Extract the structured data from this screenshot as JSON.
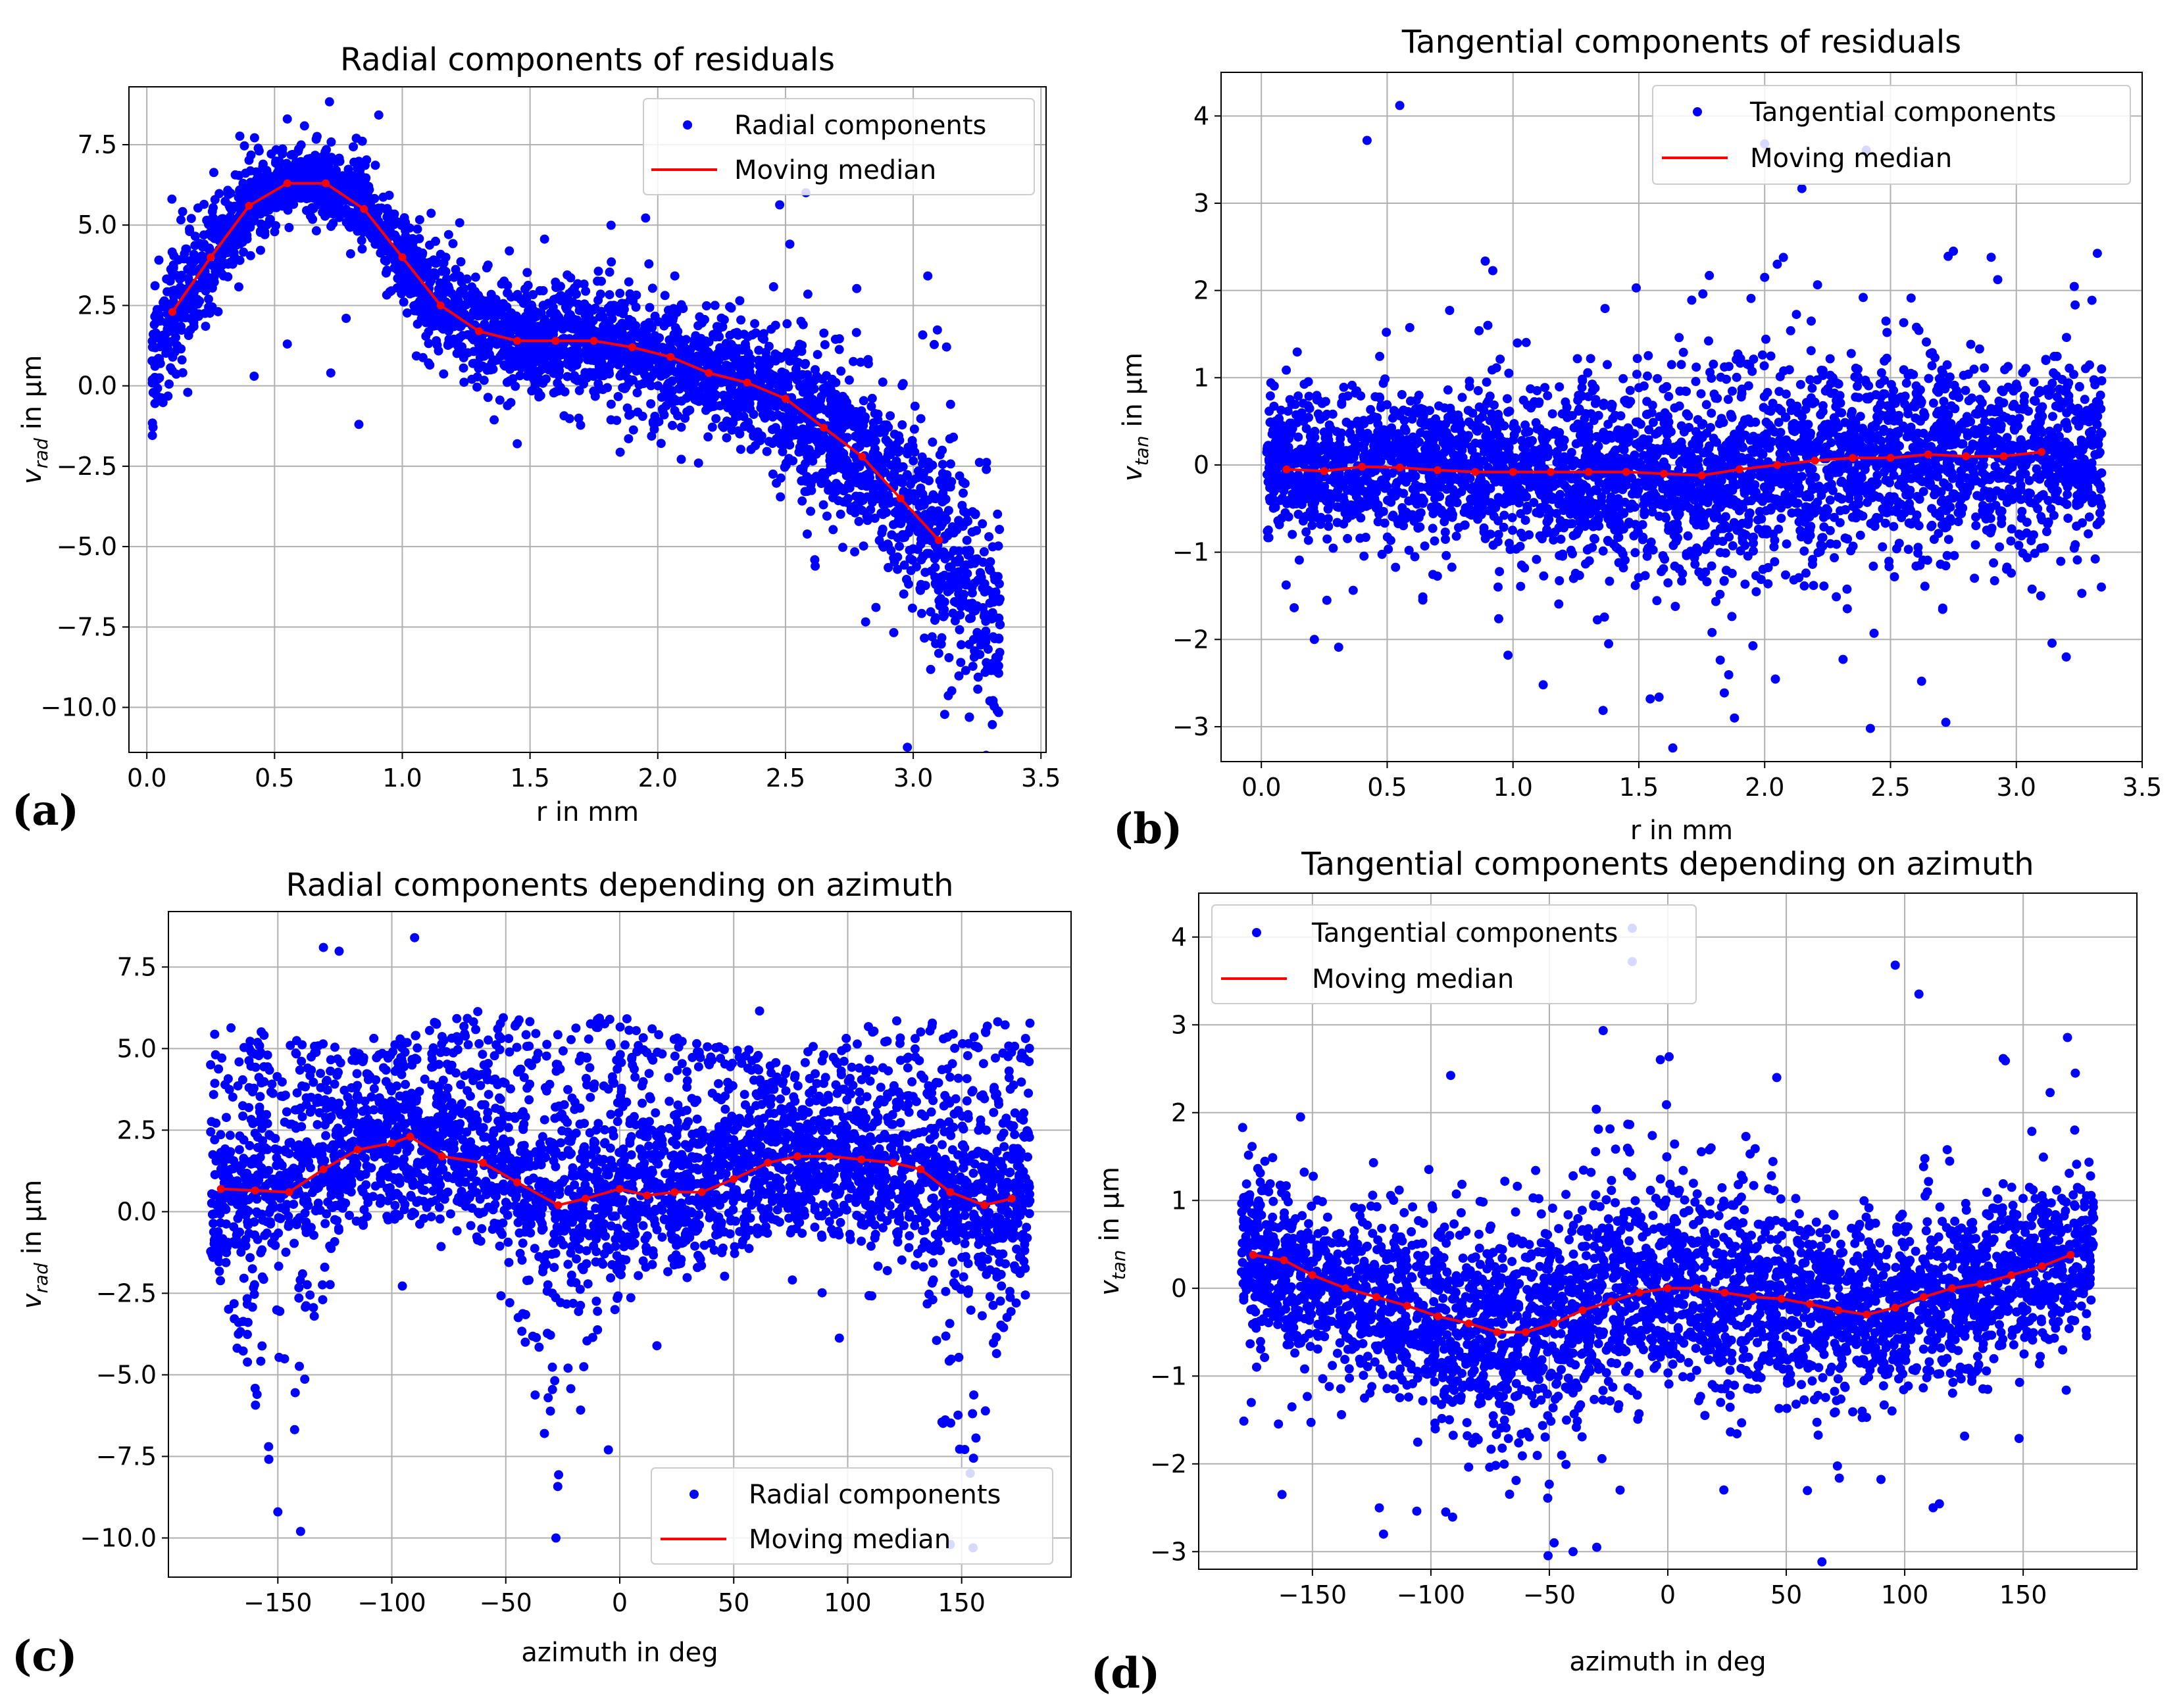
{
  "chart_data": [
    {
      "panel": "(a)",
      "type": "scatter",
      "title": "Radial components of residuals",
      "xlabel": "r in mm",
      "ylabel_main": "v",
      "ylabel_sub": "rad",
      "ylabel_rest": " in µm",
      "xlim": [
        -0.07,
        3.52
      ],
      "ylim": [
        -11.4,
        9.3
      ],
      "xticks": [
        0.0,
        0.5,
        1.0,
        1.5,
        2.0,
        2.5,
        3.0,
        3.5
      ],
      "xtick_labels": [
        "0.0",
        "0.5",
        "1.0",
        "1.5",
        "2.0",
        "2.5",
        "3.0",
        "3.5"
      ],
      "yticks": [
        -10.0,
        -7.5,
        -5.0,
        -2.5,
        0.0,
        2.5,
        5.0,
        7.5
      ],
      "ytick_labels": [
        "−10.0",
        "−7.5",
        "−5.0",
        "−2.5",
        "0.0",
        "2.5",
        "5.0",
        "7.5"
      ],
      "legend": [
        "Radial components",
        "Moving median"
      ],
      "legend_position": "top-right",
      "scatter": {
        "name": "Radial components",
        "x_range": [
          0.02,
          3.34
        ],
        "trend_x": [
          0.0,
          0.1,
          0.25,
          0.4,
          0.55,
          0.7,
          0.85,
          1.0,
          1.15,
          1.3,
          1.45,
          1.6,
          1.75,
          1.9,
          2.05,
          2.2,
          2.35,
          2.5,
          2.65,
          2.8,
          2.95,
          3.1,
          3.25,
          3.35
        ],
        "trend_y": [
          0.0,
          2.3,
          4.0,
          5.6,
          6.4,
          6.3,
          5.5,
          4.0,
          2.5,
          1.7,
          1.4,
          1.4,
          1.3,
          1.2,
          0.9,
          0.4,
          0.1,
          -0.5,
          -1.4,
          -2.3,
          -3.5,
          -4.8,
          -6.5,
          -7.5
        ],
        "spread": [
          0.9,
          0.9,
          0.8,
          0.6,
          0.5,
          0.5,
          0.5,
          0.6,
          0.8,
          0.8,
          0.8,
          0.8,
          0.8,
          0.8,
          0.9,
          0.9,
          0.9,
          1.0,
          1.1,
          1.2,
          1.3,
          1.5,
          1.7,
          1.8
        ],
        "count": 3600,
        "outliers": [
          [
            0.42,
            0.3
          ],
          [
            0.55,
            1.3
          ],
          [
            0.72,
            0.4
          ],
          [
            0.83,
            -1.2
          ],
          [
            0.78,
            2.1
          ],
          [
            0.55,
            8.3
          ],
          [
            0.82,
            7.7
          ],
          [
            1.45,
            -1.8
          ],
          [
            3.22,
            -10.3
          ],
          [
            3.3,
            -9.8
          ]
        ]
      },
      "median": {
        "name": "Moving median",
        "x": [
          0.1,
          0.25,
          0.4,
          0.55,
          0.7,
          0.85,
          1.0,
          1.15,
          1.3,
          1.45,
          1.6,
          1.75,
          1.9,
          2.05,
          2.2,
          2.35,
          2.5,
          2.65,
          2.8,
          2.95,
          3.1
        ],
        "y": [
          2.3,
          4.0,
          5.6,
          6.3,
          6.3,
          5.5,
          4.0,
          2.5,
          1.7,
          1.4,
          1.4,
          1.4,
          1.2,
          0.9,
          0.4,
          0.1,
          -0.4,
          -1.3,
          -2.2,
          -3.5,
          -4.8
        ]
      }
    },
    {
      "panel": "(b)",
      "type": "scatter",
      "title": "Tangential components of residuals",
      "xlabel": "r in mm",
      "ylabel_main": "v",
      "ylabel_sub": "tan",
      "ylabel_rest": " in µm",
      "xlim": [
        -0.16,
        3.5
      ],
      "ylim": [
        -3.4,
        4.5
      ],
      "xticks": [
        0.0,
        0.5,
        1.0,
        1.5,
        2.0,
        2.5,
        3.0,
        3.5
      ],
      "xtick_labels": [
        "0.0",
        "0.5",
        "1.0",
        "1.5",
        "2.0",
        "2.5",
        "3.0",
        "3.5"
      ],
      "yticks": [
        -3,
        -2,
        -1,
        0,
        1,
        2,
        3,
        4
      ],
      "ytick_labels": [
        "−3",
        "−2",
        "−1",
        "0",
        "1",
        "2",
        "3",
        "4"
      ],
      "legend": [
        "Tangential components",
        "Moving median"
      ],
      "legend_position": "top-right",
      "scatter": {
        "name": "Tangential components",
        "x_range": [
          0.02,
          3.34
        ],
        "trend_x": [
          0.0,
          0.5,
          1.0,
          1.5,
          1.75,
          2.0,
          2.5,
          3.0,
          3.35
        ],
        "trend_y": [
          -0.05,
          0.0,
          -0.08,
          -0.1,
          -0.12,
          -0.02,
          0.08,
          0.1,
          0.15
        ],
        "spread": [
          0.35,
          0.4,
          0.45,
          0.5,
          0.55,
          0.55,
          0.55,
          0.5,
          0.45
        ],
        "count": 3600,
        "outliers": [
          [
            0.42,
            3.72
          ],
          [
            0.55,
            4.12
          ],
          [
            2.0,
            3.68
          ],
          [
            2.42,
            -3.02
          ],
          [
            2.72,
            -2.95
          ],
          [
            1.88,
            -2.9
          ],
          [
            1.12,
            -2.52
          ],
          [
            0.98,
            -2.18
          ],
          [
            2.0,
            2.15
          ],
          [
            2.75,
            2.45
          ],
          [
            2.9,
            2.38
          ],
          [
            2.05,
            2.3
          ],
          [
            1.38,
            -2.05
          ],
          [
            0.9,
            1.6
          ]
        ]
      },
      "median": {
        "name": "Moving median",
        "x": [
          0.1,
          0.25,
          0.4,
          0.55,
          0.7,
          0.85,
          1.0,
          1.15,
          1.3,
          1.45,
          1.6,
          1.75,
          1.9,
          2.05,
          2.2,
          2.35,
          2.5,
          2.65,
          2.8,
          2.95,
          3.1
        ],
        "y": [
          -0.05,
          -0.07,
          -0.02,
          -0.03,
          -0.06,
          -0.08,
          -0.08,
          -0.08,
          -0.08,
          -0.08,
          -0.1,
          -0.12,
          -0.05,
          0.0,
          0.05,
          0.08,
          0.08,
          0.12,
          0.1,
          0.1,
          0.15
        ]
      }
    },
    {
      "panel": "(c)",
      "type": "scatter",
      "title": "Radial components depending on azimuth",
      "xlabel": "azimuth in deg",
      "ylabel_main": "v",
      "ylabel_sub": "rad",
      "ylabel_rest": " in µm",
      "xlim": [
        -198,
        198
      ],
      "ylim": [
        -11.2,
        9.2
      ],
      "xticks": [
        -150,
        -100,
        -50,
        0,
        50,
        100,
        150
      ],
      "xtick_labels": [
        "−150",
        "−100",
        "−50",
        "0",
        "50",
        "100",
        "150"
      ],
      "yticks": [
        -10.0,
        -7.5,
        -5.0,
        -2.5,
        0.0,
        2.5,
        5.0,
        7.5
      ],
      "ytick_labels": [
        "−10.0",
        "−7.5",
        "−5.0",
        "−2.5",
        "0.0",
        "2.5",
        "5.0",
        "7.5"
      ],
      "legend": [
        "Radial components",
        "Moving median"
      ],
      "legend_position": "bottom-right",
      "scatter": {
        "name": "Radial components",
        "x_range": [
          -180,
          180
        ],
        "trend_x": [
          -180,
          -150,
          -120,
          -95,
          -60,
          -30,
          0,
          30,
          60,
          90,
          120,
          150,
          180
        ],
        "trend_y": [
          0.7,
          0.6,
          1.9,
          2.3,
          1.5,
          0.2,
          0.6,
          0.6,
          1.5,
          1.6,
          1.3,
          0.2,
          0.5
        ],
        "spread": [
          1.0,
          1.0,
          1.0,
          1.0,
          1.0,
          1.0,
          1.0,
          1.0,
          1.0,
          1.0,
          1.0,
          1.0,
          1.0
        ],
        "count": 3600,
        "outliers": [
          [
            -130,
            8.1
          ],
          [
            -90,
            8.4
          ],
          [
            -28,
            -10.0
          ],
          [
            -5,
            -7.3
          ],
          [
            145,
            -10.2
          ],
          [
            155,
            -10.3
          ],
          [
            -140,
            -9.8
          ],
          [
            -150,
            -9.2
          ]
        ]
      },
      "median": {
        "name": "Moving median",
        "x": [
          -175,
          -160,
          -145,
          -130,
          -115,
          -100,
          -92,
          -78,
          -60,
          -45,
          -27,
          -15,
          0,
          12,
          24,
          36,
          50,
          65,
          78,
          92,
          106,
          120,
          132,
          145,
          160,
          172
        ],
        "y": [
          0.7,
          0.65,
          0.6,
          1.3,
          1.9,
          2.1,
          2.3,
          1.7,
          1.5,
          0.9,
          0.2,
          0.4,
          0.7,
          0.5,
          0.6,
          0.6,
          1.0,
          1.5,
          1.7,
          1.7,
          1.6,
          1.5,
          1.3,
          0.6,
          0.2,
          0.4
        ]
      }
    },
    {
      "panel": "(d)",
      "type": "scatter",
      "title": "Tangential components depending on azimuth",
      "xlabel": "azimuth in deg",
      "ylabel_main": "v",
      "ylabel_sub": "tan",
      "ylabel_rest": " in µm",
      "xlim": [
        -198,
        198
      ],
      "ylim": [
        -3.2,
        4.5
      ],
      "xticks": [
        -150,
        -100,
        -50,
        0,
        50,
        100,
        150
      ],
      "xtick_labels": [
        "−150",
        "−100",
        "−50",
        "0",
        "50",
        "100",
        "150"
      ],
      "yticks": [
        -3,
        -2,
        -1,
        0,
        1,
        2,
        3,
        4
      ],
      "ytick_labels": [
        "−3",
        "−2",
        "−1",
        "0",
        "1",
        "2",
        "3",
        "4"
      ],
      "legend": [
        "Tangential components",
        "Moving median"
      ],
      "legend_position": "top-left",
      "scatter": {
        "name": "Tangential components",
        "x_range": [
          -180,
          180
        ],
        "trend_x": [
          -180,
          -150,
          -120,
          -90,
          -70,
          -50,
          -30,
          0,
          30,
          60,
          90,
          120,
          150,
          180
        ],
        "trend_y": [
          0.4,
          0.1,
          -0.2,
          -0.45,
          -0.5,
          -0.35,
          -0.1,
          0.05,
          -0.05,
          -0.2,
          -0.25,
          -0.05,
          0.2,
          0.45
        ],
        "spread": [
          0.45,
          0.45,
          0.5,
          0.55,
          0.6,
          0.6,
          0.55,
          0.55,
          0.55,
          0.5,
          0.5,
          0.5,
          0.45,
          0.45
        ],
        "count": 3600,
        "outliers": [
          [
            -15,
            3.72
          ],
          [
            -15,
            4.1
          ],
          [
            96,
            3.68
          ],
          [
            106,
            3.35
          ],
          [
            -40,
            -3.0
          ],
          [
            -48,
            -2.9
          ],
          [
            -30,
            -2.95
          ],
          [
            -120,
            -2.8
          ],
          [
            112,
            -2.5
          ],
          [
            46,
            2.4
          ],
          [
            172,
            2.45
          ],
          [
            -155,
            1.95
          ]
        ]
      },
      "median": {
        "name": "Moving median",
        "x": [
          -175,
          -162,
          -150,
          -136,
          -123,
          -110,
          -97,
          -84,
          -72,
          -60,
          -48,
          -36,
          -24,
          -12,
          0,
          12,
          24,
          36,
          48,
          60,
          72,
          84,
          96,
          108,
          120,
          132,
          145,
          158,
          170
        ],
        "y": [
          0.38,
          0.32,
          0.15,
          0.0,
          -0.1,
          -0.2,
          -0.32,
          -0.4,
          -0.5,
          -0.5,
          -0.4,
          -0.25,
          -0.15,
          -0.05,
          0.0,
          0.0,
          -0.05,
          -0.1,
          -0.12,
          -0.18,
          -0.25,
          -0.3,
          -0.22,
          -0.1,
          0.0,
          0.05,
          0.15,
          0.25,
          0.38
        ]
      }
    }
  ]
}
